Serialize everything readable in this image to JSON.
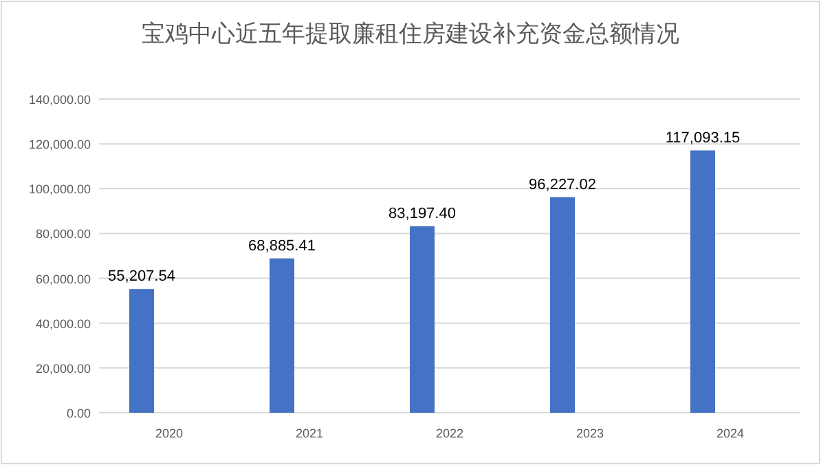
{
  "chart_data": {
    "type": "bar",
    "title": "宝鸡中心近五年提取廉租住房建设补充资金总额情况",
    "categories": [
      "2020",
      "2021",
      "2022",
      "2023",
      "2024"
    ],
    "values": [
      55207.54,
      68885.41,
      83197.4,
      96227.02,
      117093.15
    ],
    "value_labels": [
      "55,207.54",
      "68,885.41",
      "83,197.40",
      "96,227.02",
      "117,093.15"
    ],
    "color": "#4472c4",
    "grid": "y",
    "ylim": [
      0,
      140000
    ],
    "yticks": [
      {
        "value": 0,
        "label": "0.00"
      },
      {
        "value": 20000,
        "label": "20,000.00"
      },
      {
        "value": 40000,
        "label": "40,000.00"
      },
      {
        "value": 60000,
        "label": "60,000.00"
      },
      {
        "value": 80000,
        "label": "80,000.00"
      },
      {
        "value": 100000,
        "label": "100,000.00"
      },
      {
        "value": 120000,
        "label": "120,000.00"
      },
      {
        "value": 140000,
        "label": "140,000.00"
      }
    ]
  }
}
